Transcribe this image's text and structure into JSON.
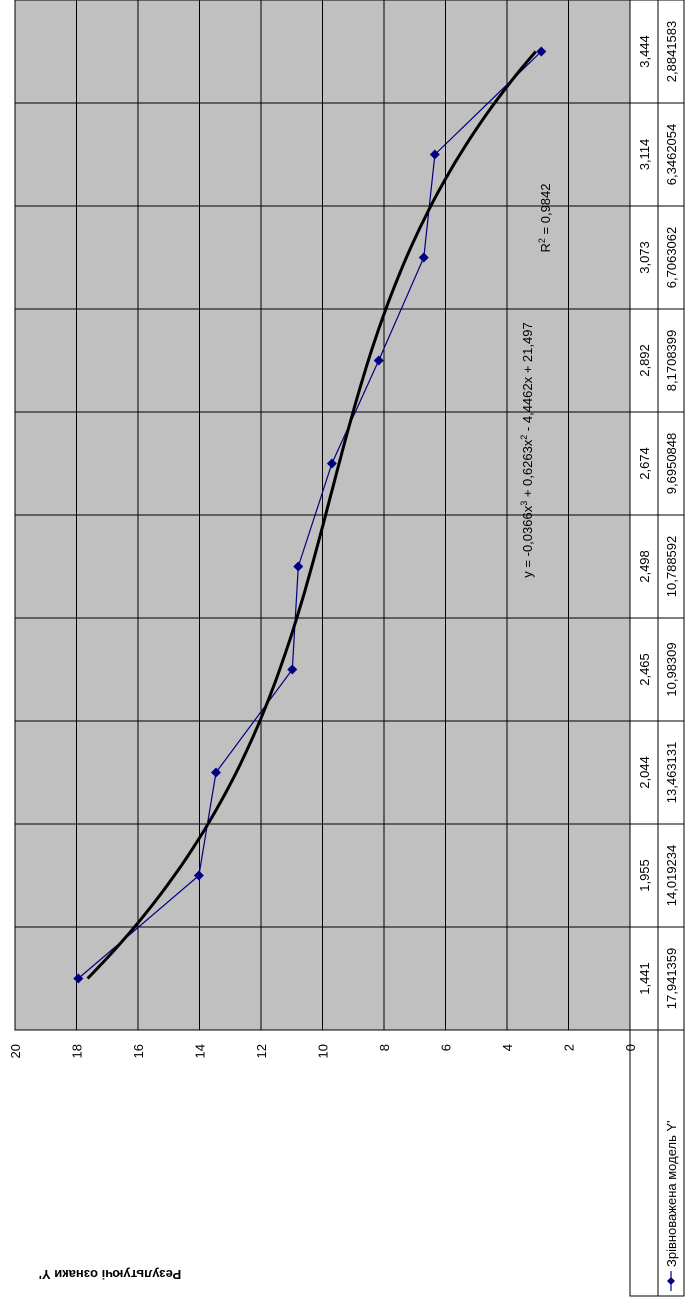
{
  "chart_data": {
    "type": "line",
    "title": "",
    "ylabel": "Результуючі ознаки Y'",
    "xlabel": "",
    "ylim": [
      0,
      20
    ],
    "y_ticks": [
      "0",
      "2",
      "4",
      "6",
      "8",
      "10",
      "12",
      "14",
      "16",
      "18",
      "20"
    ],
    "categories": [
      "1,441",
      "1,955",
      "2,044",
      "2,465",
      "2,498",
      "2,674",
      "2,892",
      "3,073",
      "3,114",
      "3,444"
    ],
    "series": [
      {
        "name": "Зрівноважена модель Y'",
        "values": [
          17.941359,
          14.019234,
          13.463131,
          10.98309,
          10.788592,
          9.6950848,
          8.1708399,
          6.7063062,
          6.3462054,
          2.8841583
        ],
        "value_labels": [
          "17,941359",
          "14,019234",
          "13,463131",
          "10,98309",
          "10,788592",
          "9,6950848",
          "8,1708399",
          "6,7063062",
          "6,3462054",
          "2,8841583"
        ],
        "color": "#000080",
        "marker": "diamond"
      }
    ],
    "trendline": {
      "type": "polynomial",
      "order": 3,
      "equation_prefix": "y = -0,0366x",
      "equation_parts": [
        "y = -0,0366x",
        "3",
        " + 0,6263x",
        "2",
        " - 4,4462x + 21,497"
      ],
      "coefficients": [
        -0.0366,
        0.6263,
        -4.4462,
        21.497
      ],
      "r2_label": "R",
      "r2_sup": "2",
      "r2_value": " = 0,9842",
      "color": "#000000"
    },
    "plot_background": "#c0c0c0",
    "grid": true,
    "orientation": "rotated-90-clockwise",
    "data_table": true,
    "legend_position": "data-table"
  }
}
